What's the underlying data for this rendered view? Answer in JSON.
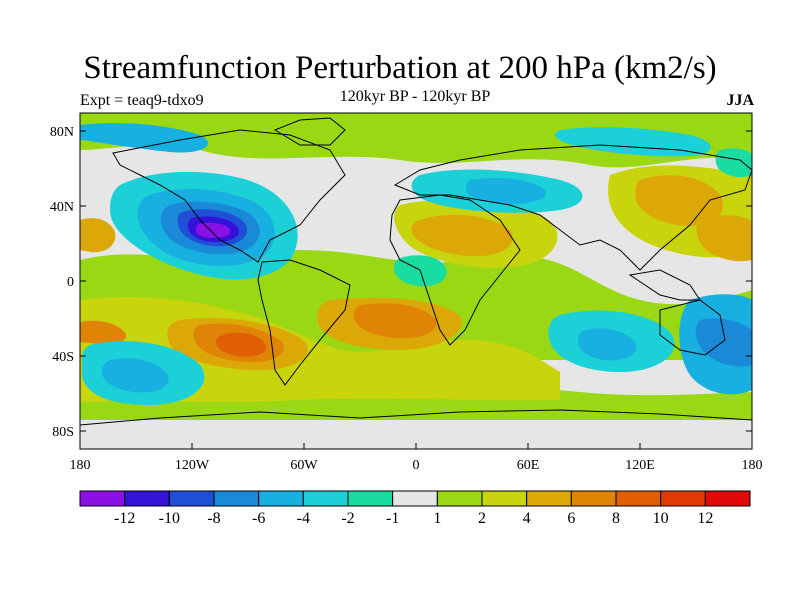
{
  "title": "Streamfunction Perturbation at 200 hPa (km2/s)",
  "left_label": "Expt = teaq9-tdxo9",
  "center_label": "120kyr BP - 120kyr BP",
  "right_label": "JJA",
  "lat_ticks": [
    "80N",
    "40N",
    "0",
    "40S",
    "80S"
  ],
  "lon_ticks": [
    "180",
    "120W",
    "60W",
    "0",
    "60E",
    "120E",
    "180"
  ],
  "colorbar": {
    "labels": [
      "-12",
      "-10",
      "-8",
      "-6",
      "-4",
      "-2",
      "-1",
      "1",
      "2",
      "4",
      "6",
      "8",
      "10",
      "12"
    ],
    "colors": [
      "#8a10e6",
      "#3412d8",
      "#1f4fd6",
      "#1a8ad8",
      "#18b0e0",
      "#1cd0d8",
      "#18dca0",
      "#e6e6e6",
      "#9ad814",
      "#c8d40c",
      "#dca808",
      "#e08406",
      "#e05e04",
      "#e03a04",
      "#e00a0a"
    ]
  },
  "map_data": {
    "field": "200 hPa streamfunction perturbation",
    "units": "km2/s",
    "season": "JJA",
    "extent": {
      "lon": [
        -180,
        180
      ],
      "lat": [
        -90,
        90
      ]
    }
  }
}
